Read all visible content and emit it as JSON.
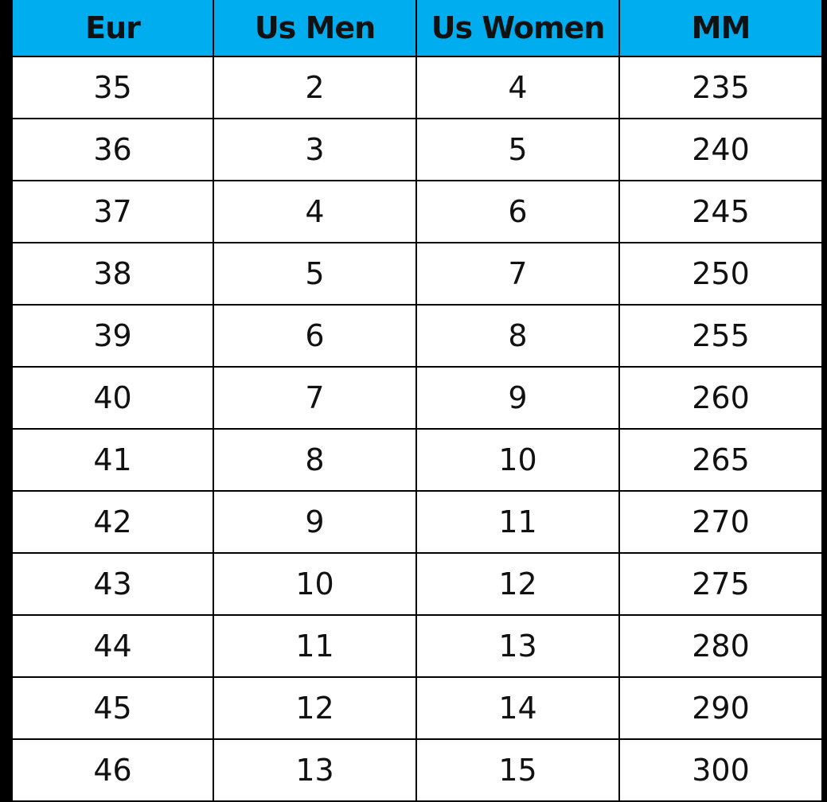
{
  "table": {
    "header": [
      "Eur",
      "Us Men",
      "Us Women",
      "MM"
    ],
    "rows": [
      [
        35,
        2,
        4,
        235
      ],
      [
        36,
        3,
        5,
        240
      ],
      [
        37,
        4,
        6,
        245
      ],
      [
        38,
        5,
        7,
        250
      ],
      [
        39,
        6,
        8,
        255
      ],
      [
        40,
        7,
        9,
        260
      ],
      [
        41,
        8,
        10,
        265
      ],
      [
        42,
        9,
        11,
        270
      ],
      [
        43,
        10,
        12,
        275
      ],
      [
        44,
        11,
        13,
        280
      ],
      [
        45,
        12,
        14,
        290
      ],
      [
        46,
        13,
        15,
        300
      ]
    ]
  }
}
